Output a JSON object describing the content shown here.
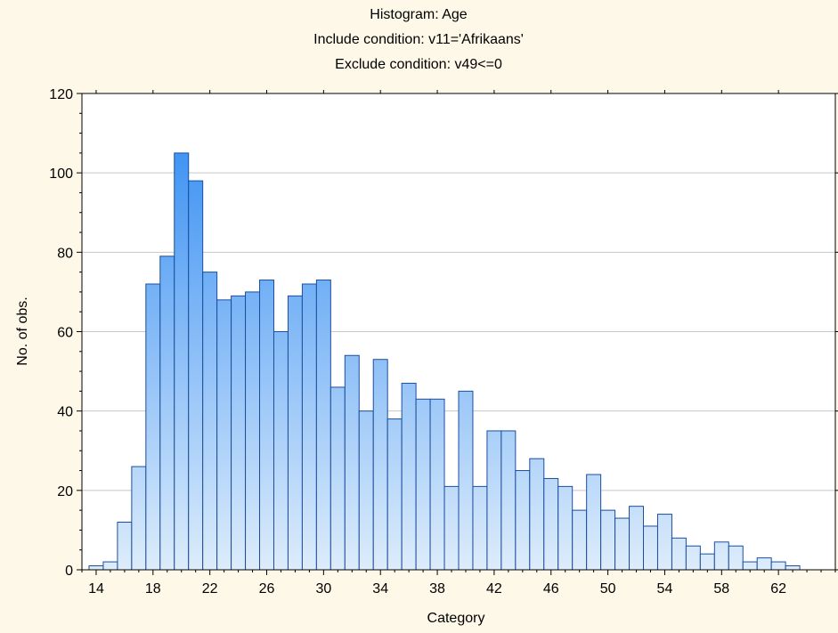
{
  "chart_data": {
    "type": "bar",
    "title": "Histogram: Age",
    "subtitle_lines": [
      "Include condition: v11='Afrikaans'",
      "Exclude condition: v49<=0"
    ],
    "xlabel": "Category",
    "ylabel": "No. of obs.",
    "ylim": [
      0,
      120
    ],
    "yticks": [
      0,
      20,
      40,
      60,
      80,
      100,
      120
    ],
    "xlim": [
      13,
      66
    ],
    "xticks": [
      14,
      18,
      22,
      26,
      30,
      34,
      38,
      42,
      46,
      50,
      54,
      58,
      62
    ],
    "xticklabels": [
      "14",
      "18",
      "22",
      "26",
      "30",
      "34",
      "38",
      "42",
      "46",
      "50",
      "54",
      "58",
      "62"
    ],
    "grid": "horizontal",
    "bar_start": 14,
    "bar_width": 1,
    "values": [
      1,
      2,
      12,
      26,
      72,
      79,
      105,
      98,
      75,
      68,
      69,
      70,
      73,
      60,
      69,
      72,
      73,
      46,
      54,
      40,
      53,
      38,
      47,
      43,
      43,
      21,
      45,
      21,
      35,
      35,
      25,
      28,
      23,
      21,
      15,
      24,
      15,
      13,
      16,
      11,
      14,
      8,
      6,
      4,
      7,
      6,
      2,
      3,
      2,
      1
    ],
    "colors": {
      "bar_top": "#2b88f2",
      "bar_bottom": "#ddecfb",
      "bar_stroke": "#1a4f9e",
      "grid": "#c8c8c8",
      "background": "#fdf8e8",
      "plot_background": "#ffffff"
    }
  }
}
